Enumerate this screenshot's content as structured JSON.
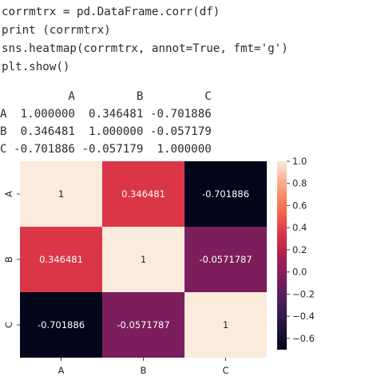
{
  "code": {
    "lines": [
      "corrmtrx = pd.DataFrame.corr(df)",
      "print (corrmtrx)",
      "sns.heatmap(corrmtrx, annot=True, fmt='g')",
      "plt.show()"
    ]
  },
  "dataframe": {
    "rows": [
      "          A         B         C",
      "A  1.000000  0.346481 -0.701886",
      "B  0.346481  1.000000 -0.057179",
      "C -0.701886 -0.057179  1.000000"
    ]
  },
  "chart_data": {
    "type": "heatmap",
    "x_categories": [
      "A",
      "B",
      "C"
    ],
    "y_categories": [
      "A",
      "B",
      "C"
    ],
    "values": [
      [
        1,
        0.346481,
        -0.701886
      ],
      [
        0.346481,
        1,
        -0.0571787
      ],
      [
        -0.701886,
        -0.0571787,
        1
      ]
    ],
    "annotations": [
      [
        "1",
        "0.346481",
        "-0.701886"
      ],
      [
        "0.346481",
        "1",
        "-0.0571787"
      ],
      [
        "-0.701886",
        "-0.0571787",
        "1"
      ]
    ],
    "colorbar": {
      "range": [
        -0.701886,
        1.0
      ],
      "ticks": [
        1.0,
        0.8,
        0.6,
        0.4,
        0.2,
        0.0,
        -0.2,
        -0.4,
        -0.6
      ],
      "tick_labels": [
        "1.0",
        "0.8",
        "0.6",
        "0.4",
        "0.2",
        "0.0",
        "−0.2",
        "−0.4",
        "−0.6"
      ]
    },
    "colormap": "rocket",
    "title": "",
    "xlabel": "",
    "ylabel": ""
  }
}
